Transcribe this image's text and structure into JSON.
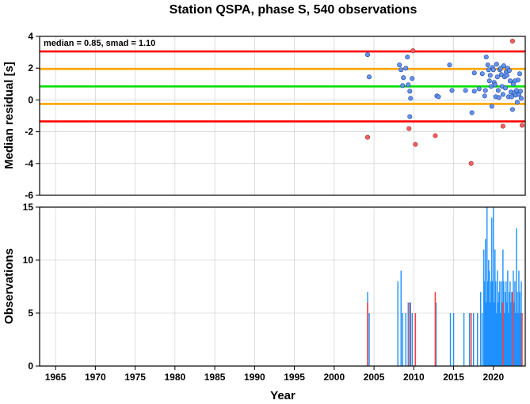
{
  "chart_data": [
    {
      "type": "scatter",
      "title": "Station QSPA, phase S, 540 observations",
      "ylabel": "Median residual [s]",
      "xlabel": "",
      "annotation": "median = 0.85, smad = 1.10",
      "xlim": [
        1963,
        2024
      ],
      "ylim": [
        -6,
        4
      ],
      "yticks": [
        4,
        2,
        0,
        -2,
        -4,
        -6
      ],
      "grid": true,
      "lines": [
        {
          "y": 3.05,
          "color": "#ff0000"
        },
        {
          "y": 1.95,
          "color": "#ffa500"
        },
        {
          "y": 0.85,
          "color": "#00e000"
        },
        {
          "y": -0.25,
          "color": "#ffa500"
        },
        {
          "y": -1.35,
          "color": "#ff0000"
        }
      ],
      "inliers": {
        "color": "#6495ed",
        "points": [
          [
            2004.2,
            2.85
          ],
          [
            2004.4,
            1.45
          ],
          [
            2008.2,
            2.2
          ],
          [
            2008.4,
            1.9
          ],
          [
            2008.6,
            0.9
          ],
          [
            2008.7,
            1.4
          ],
          [
            2009.0,
            2.0
          ],
          [
            2009.2,
            2.7
          ],
          [
            2009.3,
            0.95
          ],
          [
            2009.5,
            0.55
          ],
          [
            2009.6,
            0.1
          ],
          [
            2009.8,
            1.35
          ],
          [
            2009.5,
            -1.05
          ],
          [
            2012.9,
            0.25
          ],
          [
            2013.1,
            0.2
          ],
          [
            2014.5,
            2.2
          ],
          [
            2014.8,
            0.6
          ],
          [
            2016.5,
            0.6
          ],
          [
            2017.3,
            -0.8
          ],
          [
            2017.6,
            1.7
          ],
          [
            2017.6,
            0.55
          ],
          [
            2018.2,
            0.7
          ],
          [
            2018.6,
            1.65
          ],
          [
            2018.9,
            0.25
          ],
          [
            2019.0,
            0.6
          ],
          [
            2019.1,
            2.7
          ],
          [
            2019.3,
            2.2
          ],
          [
            2019.4,
            1.9
          ],
          [
            2019.5,
            1.2
          ],
          [
            2019.6,
            1.55
          ],
          [
            2019.7,
            0.85
          ],
          [
            2019.8,
            -0.4
          ],
          [
            2019.9,
            2.05
          ],
          [
            2020.0,
            1.9
          ],
          [
            2020.1,
            1.1
          ],
          [
            2020.2,
            0.95
          ],
          [
            2020.3,
            0.2
          ],
          [
            2020.4,
            2.25
          ],
          [
            2020.5,
            1.45
          ],
          [
            2020.6,
            0.6
          ],
          [
            2020.7,
            0.15
          ],
          [
            2020.8,
            1.9
          ],
          [
            2020.9,
            2.0
          ],
          [
            2021.0,
            1.6
          ],
          [
            2021.1,
            0.85
          ],
          [
            2021.2,
            0.35
          ],
          [
            2021.3,
            2.15
          ],
          [
            2021.4,
            1.45
          ],
          [
            2021.5,
            0.75
          ],
          [
            2021.6,
            1.75
          ],
          [
            2021.7,
            1.55
          ],
          [
            2021.8,
            2.0
          ],
          [
            2021.9,
            0.2
          ],
          [
            2022.0,
            1.85
          ],
          [
            2022.1,
            1.2
          ],
          [
            2022.2,
            0.5
          ],
          [
            2022.3,
            0.2
          ],
          [
            2022.4,
            -0.6
          ],
          [
            2022.5,
            1.0
          ],
          [
            2022.6,
            0.45
          ],
          [
            2022.7,
            1.2
          ],
          [
            2022.8,
            0.3
          ],
          [
            2022.9,
            0.6
          ],
          [
            2023.0,
            -0.15
          ],
          [
            2023.1,
            1.25
          ],
          [
            2023.2,
            0.35
          ],
          [
            2023.3,
            1.65
          ],
          [
            2023.4,
            0.55
          ],
          [
            2023.5,
            0.1
          ]
        ]
      },
      "outliers": {
        "color": "#ff6060",
        "points": [
          [
            2004.2,
            -2.35
          ],
          [
            2009.4,
            -1.8
          ],
          [
            2009.9,
            3.1
          ],
          [
            2010.2,
            -2.8
          ],
          [
            2012.7,
            -2.25
          ],
          [
            2017.2,
            -4.0
          ],
          [
            2021.2,
            -1.65
          ],
          [
            2022.4,
            3.7
          ],
          [
            2023.6,
            -1.6
          ]
        ]
      }
    },
    {
      "type": "bar",
      "xlabel": "Year",
      "ylabel": "Observations",
      "xlim": [
        1963,
        2024
      ],
      "ylim": [
        0,
        15
      ],
      "xticks": [
        1965,
        1970,
        1975,
        1980,
        1985,
        1990,
        1995,
        2000,
        2005,
        2010,
        2015,
        2020
      ],
      "yticks": [
        0,
        5,
        10,
        15
      ],
      "grid": true,
      "inlier_color": "#1e90ff",
      "outlier_color": "#ff4040",
      "inlier_bars": [
        [
          2004.2,
          7
        ],
        [
          2004.4,
          5
        ],
        [
          2008.0,
          8
        ],
        [
          2008.4,
          9
        ],
        [
          2008.6,
          5
        ],
        [
          2009.0,
          5
        ],
        [
          2009.3,
          6
        ],
        [
          2009.6,
          6
        ],
        [
          2009.8,
          5
        ],
        [
          2010.2,
          5
        ],
        [
          2012.8,
          6
        ],
        [
          2014.6,
          5
        ],
        [
          2015.0,
          5
        ],
        [
          2016.3,
          5
        ],
        [
          2017.0,
          5
        ],
        [
          2017.5,
          5
        ],
        [
          2018.0,
          5
        ],
        [
          2018.4,
          7
        ],
        [
          2018.6,
          5
        ],
        [
          2018.8,
          11
        ],
        [
          2018.9,
          8
        ],
        [
          2019.0,
          12
        ],
        [
          2019.1,
          6
        ],
        [
          2019.2,
          15
        ],
        [
          2019.3,
          8
        ],
        [
          2019.4,
          10
        ],
        [
          2019.5,
          9
        ],
        [
          2019.6,
          6
        ],
        [
          2019.7,
          8
        ],
        [
          2019.8,
          14
        ],
        [
          2019.9,
          8
        ],
        [
          2020.0,
          15
        ],
        [
          2020.1,
          6
        ],
        [
          2020.2,
          11
        ],
        [
          2020.3,
          8
        ],
        [
          2020.4,
          5
        ],
        [
          2020.5,
          9
        ],
        [
          2020.6,
          6
        ],
        [
          2020.7,
          7
        ],
        [
          2020.8,
          8
        ],
        [
          2020.9,
          5
        ],
        [
          2021.0,
          8
        ],
        [
          2021.1,
          6
        ],
        [
          2021.2,
          11
        ],
        [
          2021.3,
          8
        ],
        [
          2021.4,
          5
        ],
        [
          2021.5,
          7
        ],
        [
          2021.6,
          8
        ],
        [
          2021.7,
          6
        ],
        [
          2021.8,
          9
        ],
        [
          2021.9,
          5
        ],
        [
          2022.0,
          7
        ],
        [
          2022.1,
          8
        ],
        [
          2022.2,
          6
        ],
        [
          2022.3,
          7
        ],
        [
          2022.4,
          5
        ],
        [
          2022.5,
          9
        ],
        [
          2022.6,
          6
        ],
        [
          2022.7,
          8
        ],
        [
          2022.8,
          5
        ],
        [
          2022.9,
          13
        ],
        [
          2023.0,
          7
        ],
        [
          2023.1,
          5
        ],
        [
          2023.2,
          9
        ],
        [
          2023.3,
          7
        ],
        [
          2023.4,
          5
        ],
        [
          2023.5,
          8
        ]
      ],
      "outlier_bars": [
        [
          2004.2,
          6
        ],
        [
          2009.5,
          6
        ],
        [
          2010.2,
          5
        ],
        [
          2012.7,
          7
        ],
        [
          2017.2,
          5
        ],
        [
          2021.2,
          6
        ],
        [
          2022.4,
          7
        ],
        [
          2023.6,
          5
        ]
      ]
    }
  ]
}
